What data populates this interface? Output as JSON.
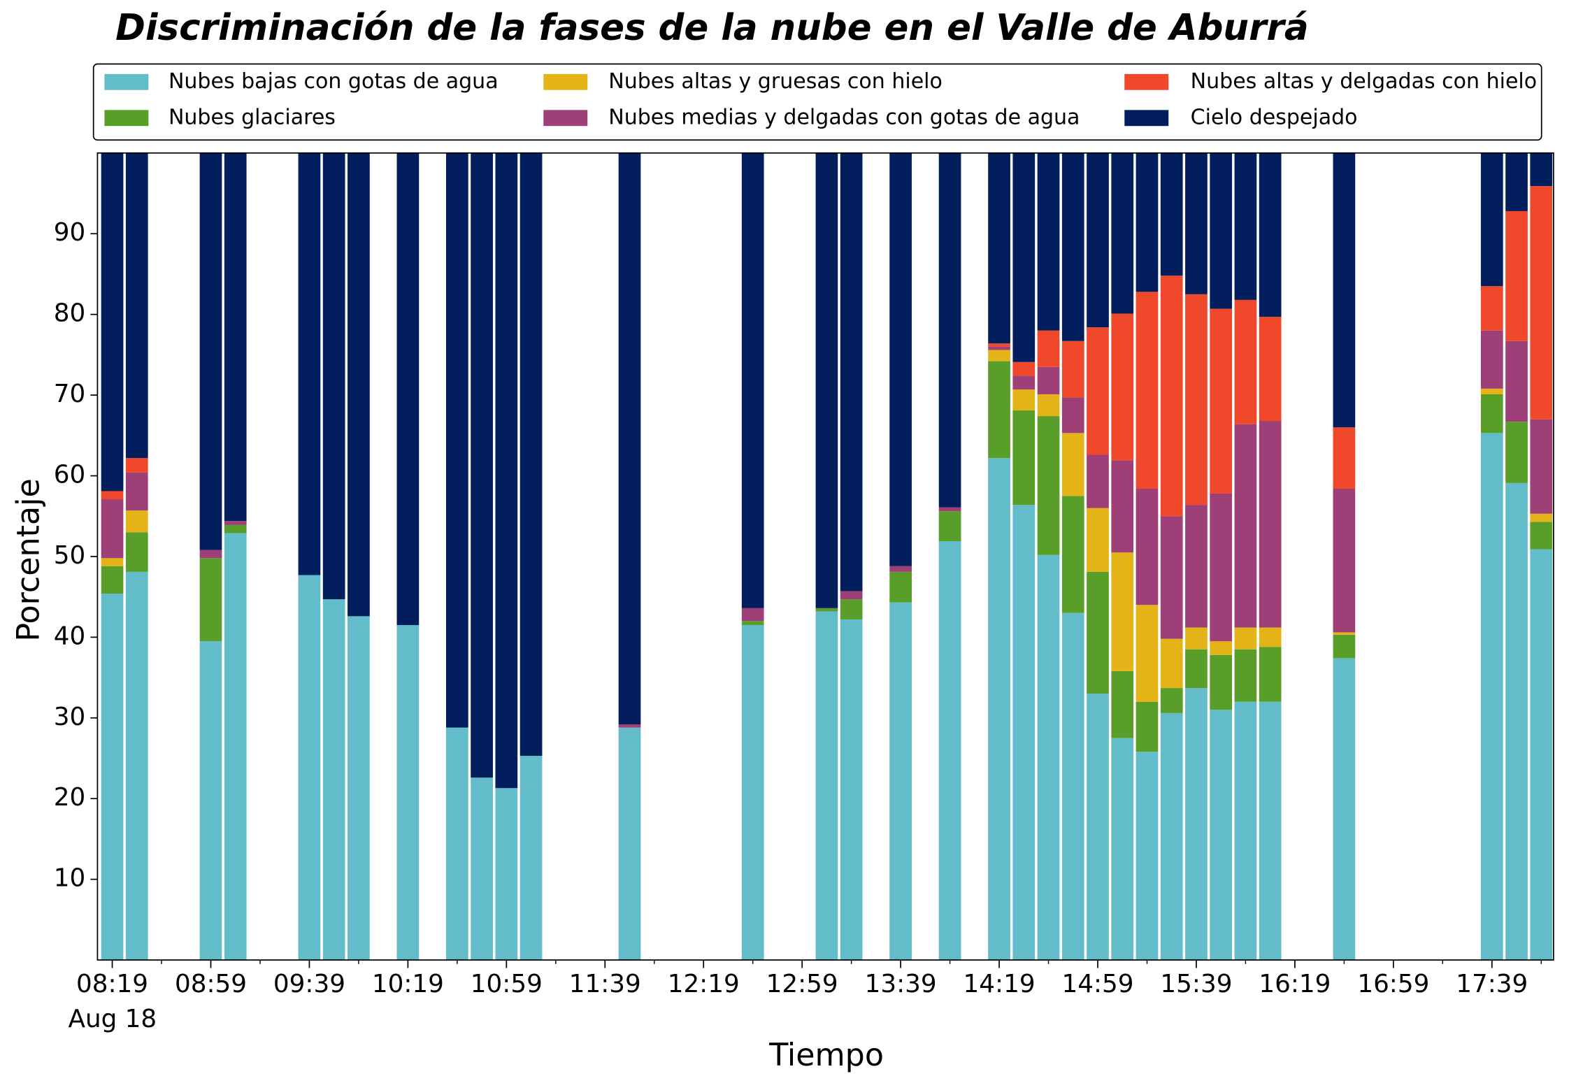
{
  "chart_data": {
    "type": "bar",
    "stacked": true,
    "title": "Discriminación de la fases de la nube en el Valle de Aburrá",
    "xlabel": "Tiempo",
    "ylabel": "Porcentaje",
    "x_date_label": "Aug 18",
    "x": [
      "08:19",
      "08:29",
      "08:59",
      "09:09",
      "09:39",
      "09:49",
      "09:59",
      "10:19",
      "10:39",
      "10:49",
      "10:59",
      "11:09",
      "11:49",
      "12:39",
      "13:09",
      "13:19",
      "13:39",
      "13:59",
      "14:19",
      "14:29",
      "14:39",
      "14:49",
      "14:59",
      "15:09",
      "15:19",
      "15:29",
      "15:39",
      "15:49",
      "15:59",
      "16:09",
      "16:39",
      "17:39",
      "17:49",
      "17:59"
    ],
    "xlim": [
      "08:13",
      "18:04"
    ],
    "xticks": [
      "08:19",
      "08:59",
      "09:39",
      "10:19",
      "10:59",
      "11:39",
      "12:19",
      "12:59",
      "13:39",
      "14:19",
      "14:59",
      "15:39",
      "16:19",
      "16:59",
      "17:39"
    ],
    "xticks_minor": [
      "08:39",
      "09:19",
      "09:59",
      "10:39",
      "11:19",
      "11:59",
      "12:39",
      "13:19",
      "13:59",
      "14:39",
      "15:19",
      "15:59",
      "16:39",
      "17:19",
      "17:59"
    ],
    "ylim": [
      0,
      100
    ],
    "yticks": [
      10,
      20,
      30,
      40,
      50,
      60,
      70,
      80,
      90
    ],
    "legend_position": "top",
    "series": [
      {
        "name": "Nubes bajas con gotas de agua",
        "color": "#63bcc9",
        "values": [
          45.4,
          48.1,
          39.5,
          52.9,
          47.7,
          44.7,
          42.6,
          41.5,
          28.8,
          22.6,
          21.3,
          25.3,
          28.8,
          41.5,
          43.2,
          42.2,
          44.3,
          51.9,
          62.2,
          56.4,
          50.2,
          43.0,
          33.0,
          27.5,
          25.8,
          30.6,
          33.7,
          31.0,
          32.0,
          32.0,
          37.4,
          65.3,
          59.1,
          50.9
        ]
      },
      {
        "name": "Nubes glaciares",
        "color": "#5a9e2a",
        "values": [
          3.4,
          4.9,
          10.3,
          1.0,
          0,
          0,
          0,
          0,
          0,
          0,
          0,
          0,
          0,
          0.5,
          0.4,
          2.5,
          3.8,
          3.7,
          12.0,
          11.7,
          17.2,
          14.5,
          15.1,
          8.3,
          6.2,
          3.1,
          4.8,
          6.8,
          6.5,
          6.8,
          2.9,
          4.8,
          7.6,
          3.4
        ]
      },
      {
        "name": "Nubes altas y gruesas con hielo",
        "color": "#e3b317",
        "values": [
          1.0,
          2.7,
          0,
          0,
          0,
          0,
          0,
          0,
          0,
          0,
          0,
          0,
          0,
          0,
          0,
          0,
          0,
          0,
          1.4,
          2.6,
          2.7,
          7.8,
          7.9,
          14.7,
          12.0,
          6.1,
          2.7,
          1.7,
          2.7,
          2.4,
          0.3,
          0.7,
          0,
          1.0
        ]
      },
      {
        "name": "Nubes medias y delgadas con gotas de agua",
        "color": "#9e3f77",
        "values": [
          7.3,
          4.7,
          1.0,
          0.5,
          0,
          0,
          0,
          0,
          0,
          0,
          0,
          0,
          0.4,
          1.6,
          0,
          1.0,
          0.7,
          0.5,
          0.4,
          1.7,
          3.4,
          4.4,
          6.6,
          11.4,
          14.4,
          15.2,
          15.2,
          18.3,
          25.2,
          25.6,
          17.8,
          7.2,
          10.0,
          11.7
        ]
      },
      {
        "name": "Nubes altas y delgadas con hielo",
        "color": "#ef482b",
        "values": [
          1.0,
          1.8,
          0,
          0,
          0,
          0,
          0,
          0,
          0,
          0,
          0,
          0,
          0,
          0,
          0,
          0,
          0,
          0,
          0.4,
          1.7,
          4.5,
          7.0,
          15.8,
          18.2,
          24.4,
          29.8,
          26.1,
          22.9,
          15.4,
          12.9,
          7.6,
          5.5,
          16.1,
          28.9
        ]
      },
      {
        "name": "Cielo despejado",
        "color": "#031e5c",
        "values": [
          41.9,
          37.8,
          49.2,
          45.6,
          52.3,
          55.3,
          57.4,
          58.5,
          71.2,
          77.4,
          78.7,
          74.7,
          70.8,
          56.4,
          56.4,
          54.3,
          51.2,
          43.9,
          23.6,
          25.9,
          22.0,
          23.3,
          21.6,
          19.9,
          17.2,
          15.2,
          17.5,
          19.3,
          18.2,
          20.3,
          34.0,
          16.5,
          7.2,
          4.1
        ]
      }
    ]
  }
}
